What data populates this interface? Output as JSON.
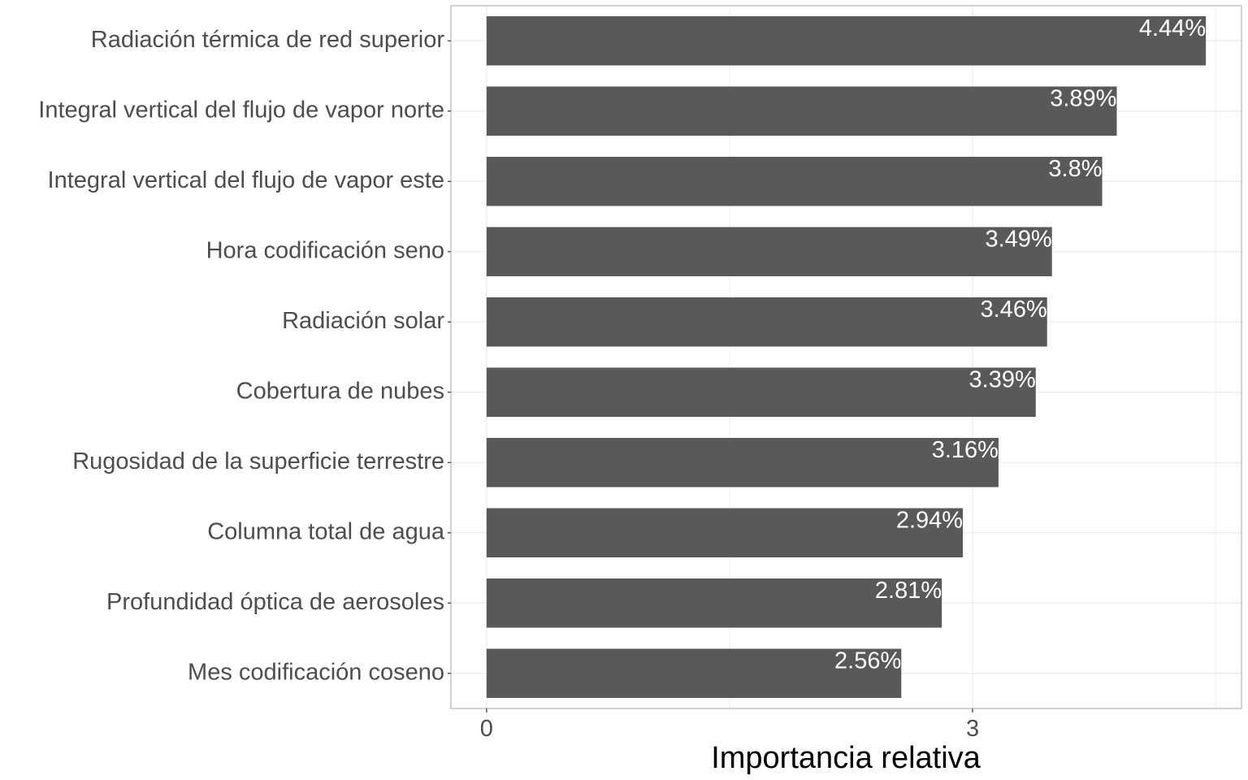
{
  "chart_data": {
    "type": "bar",
    "orientation": "horizontal",
    "title": "",
    "xlabel": "Importancia relativa",
    "ylabel": "",
    "categories": [
      "Radiación térmica de red superior",
      "Integral vertical del flujo de vapor norte",
      "Integral vertical del flujo de vapor este",
      "Hora codificación seno",
      "Radiación solar",
      "Cobertura de nubes",
      "Rugosidad de la superficie terrestre",
      "Columna total de agua",
      "Profundidad óptica de aerosoles",
      "Mes codificación coseno"
    ],
    "values": [
      4.44,
      3.89,
      3.8,
      3.49,
      3.46,
      3.39,
      3.16,
      2.94,
      2.81,
      2.56
    ],
    "value_labels": [
      "4.44%",
      "3.89%",
      "3.8%",
      "3.49%",
      "3.46%",
      "3.39%",
      "3.16%",
      "2.94%",
      "2.81%",
      "2.56%"
    ],
    "xlim": [
      -0.22,
      4.66
    ],
    "xticks": [
      0,
      3
    ],
    "xtick_labels": [
      "0",
      "3"
    ],
    "grid": true,
    "bar_color": "#595959",
    "grid_color": "#ebebeb",
    "panel_border_color": "#b3b3b3"
  }
}
